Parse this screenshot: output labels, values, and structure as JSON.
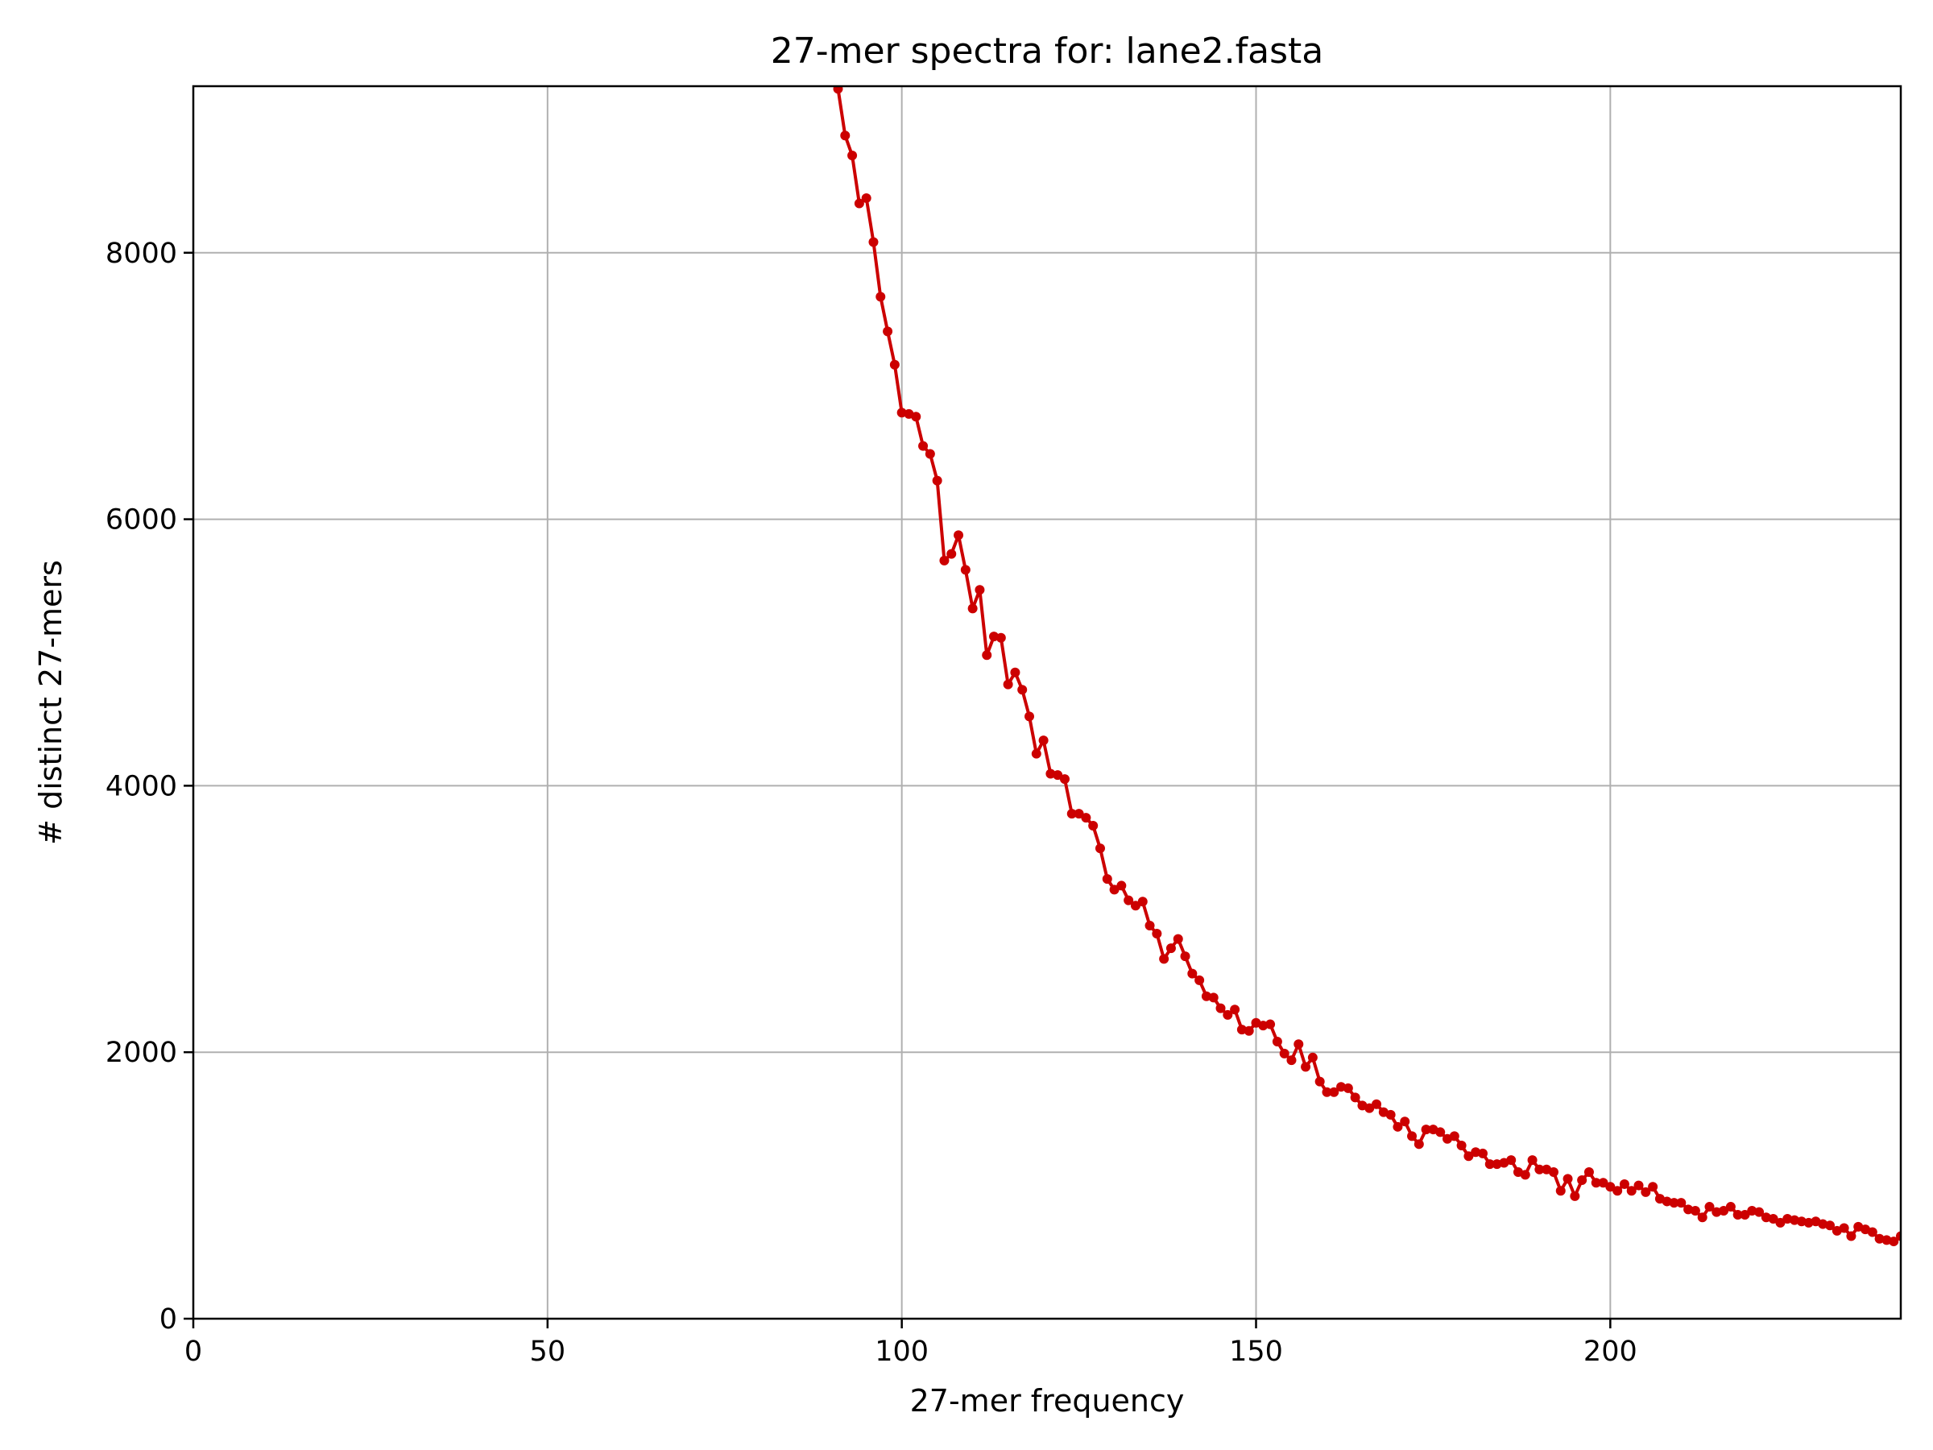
{
  "chart_data": {
    "type": "line",
    "title": "27-mer spectra for: lane2.fasta",
    "xlabel": "27-mer frequency",
    "ylabel": "# distinct 27-mers",
    "xlim": [
      0,
      241
    ],
    "ylim": [
      0,
      9250
    ],
    "xticks": [
      0,
      50,
      100,
      150,
      200
    ],
    "yticks": [
      0,
      2000,
      4000,
      6000,
      8000
    ],
    "grid": true,
    "color": "#cc0000",
    "series": [
      {
        "x": [
          91,
          92,
          93,
          94,
          95,
          96,
          97,
          98,
          99,
          100,
          101,
          102,
          103,
          104,
          105,
          106,
          107,
          108,
          109,
          110,
          111,
          112,
          113,
          114,
          115,
          116,
          117,
          118,
          119,
          120,
          121,
          122,
          123,
          124,
          125,
          126,
          127,
          128,
          129,
          130,
          131,
          132,
          133,
          134,
          135,
          136,
          137,
          138,
          139,
          140,
          141,
          142,
          143,
          144,
          145,
          146,
          147,
          148,
          149,
          150,
          151,
          152,
          153,
          154,
          155,
          156,
          157,
          158,
          159,
          160,
          161,
          162,
          163,
          164,
          165,
          166,
          167,
          168,
          169,
          170,
          171,
          172,
          173,
          174,
          175,
          176,
          177,
          178,
          179,
          180,
          181,
          182,
          183,
          184,
          185,
          186,
          187,
          188,
          189,
          190,
          191,
          192,
          193,
          194,
          195,
          196,
          197,
          198,
          199,
          200,
          201,
          202,
          203,
          204,
          205,
          206,
          207,
          208,
          209,
          210,
          211,
          212,
          213,
          214,
          215,
          216,
          217,
          218,
          219,
          220,
          221,
          222,
          223,
          224,
          225,
          226,
          227,
          228,
          229,
          230,
          231,
          232,
          233,
          234,
          235,
          236,
          237,
          238,
          239,
          240,
          241
        ],
        "values": [
          9230,
          8880,
          8730,
          8370,
          8410,
          8080,
          7670,
          7410,
          7160,
          6800,
          6790,
          6770,
          6550,
          6490,
          6290,
          5690,
          5740,
          5880,
          5620,
          5330,
          5470,
          4980,
          5120,
          5110,
          4760,
          4850,
          4720,
          4520,
          4240,
          4340,
          4090,
          4080,
          4050,
          3790,
          3790,
          3760,
          3700,
          3530,
          3300,
          3220,
          3250,
          3140,
          3100,
          3130,
          2950,
          2890,
          2700,
          2780,
          2850,
          2720,
          2590,
          2540,
          2420,
          2410,
          2330,
          2280,
          2320,
          2170,
          2160,
          2220,
          2200,
          2210,
          2080,
          1990,
          1940,
          2060,
          1890,
          1960,
          1780,
          1700,
          1700,
          1740,
          1730,
          1660,
          1600,
          1580,
          1610,
          1550,
          1530,
          1440,
          1480,
          1370,
          1310,
          1420,
          1420,
          1400,
          1350,
          1370,
          1300,
          1220,
          1250,
          1240,
          1160,
          1160,
          1170,
          1190,
          1100,
          1080,
          1190,
          1120,
          1120,
          1100,
          960,
          1050,
          920,
          1040,
          1100,
          1020,
          1020,
          990,
          960,
          1010,
          960,
          1000,
          950,
          990,
          900,
          880,
          870,
          870,
          820,
          810,
          760,
          840,
          800,
          810,
          840,
          780,
          780,
          810,
          800,
          760,
          750,
          720,
          750,
          740,
          730,
          720,
          730,
          710,
          700,
          660,
          680,
          620,
          690,
          670,
          650,
          600,
          590,
          580,
          620
        ]
      }
    ]
  }
}
